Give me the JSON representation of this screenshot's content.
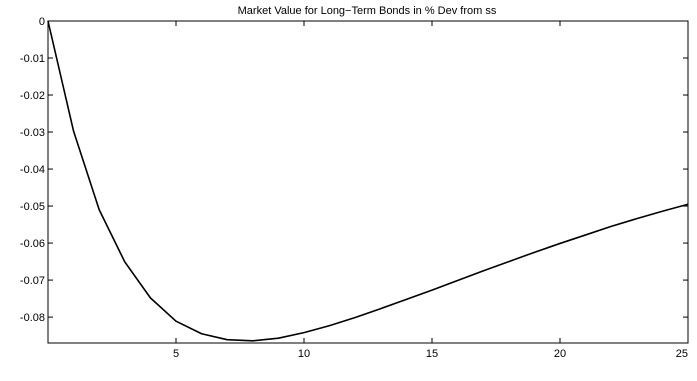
{
  "chart_data": {
    "type": "line",
    "title": "Market Value for Long−Term Bonds in % Dev from ss",
    "xlabel": "",
    "ylabel": "",
    "xlim": [
      0,
      25
    ],
    "ylim": [
      -0.087,
      0
    ],
    "grid": false,
    "x_ticks": [
      5,
      10,
      15,
      20,
      25
    ],
    "x_tick_labels": [
      "5",
      "10",
      "15",
      "20",
      "25"
    ],
    "y_ticks": [
      0,
      -0.01,
      -0.02,
      -0.03,
      -0.04,
      -0.05,
      -0.06,
      -0.07,
      -0.08
    ],
    "y_tick_labels": [
      "0",
      "-0.01",
      "-0.02",
      "-0.03",
      "-0.04",
      "-0.05",
      "-0.06",
      "-0.07",
      "-0.08"
    ],
    "series": [
      {
        "color": "#000000",
        "x": [
          0,
          1,
          2,
          3,
          4,
          5,
          6,
          7,
          8,
          9,
          10,
          11,
          12,
          13,
          14,
          15,
          16,
          17,
          18,
          19,
          20,
          21,
          22,
          23,
          24,
          25
        ],
        "values": [
          0,
          -0.0298,
          -0.051,
          -0.0651,
          -0.0748,
          -0.0811,
          -0.0845,
          -0.0861,
          -0.0864,
          -0.0857,
          -0.0842,
          -0.0823,
          -0.0801,
          -0.0777,
          -0.0752,
          -0.0727,
          -0.0701,
          -0.0675,
          -0.065,
          -0.0625,
          -0.0601,
          -0.0578,
          -0.0555,
          -0.0534,
          -0.0514,
          -0.0495
        ]
      }
    ]
  }
}
